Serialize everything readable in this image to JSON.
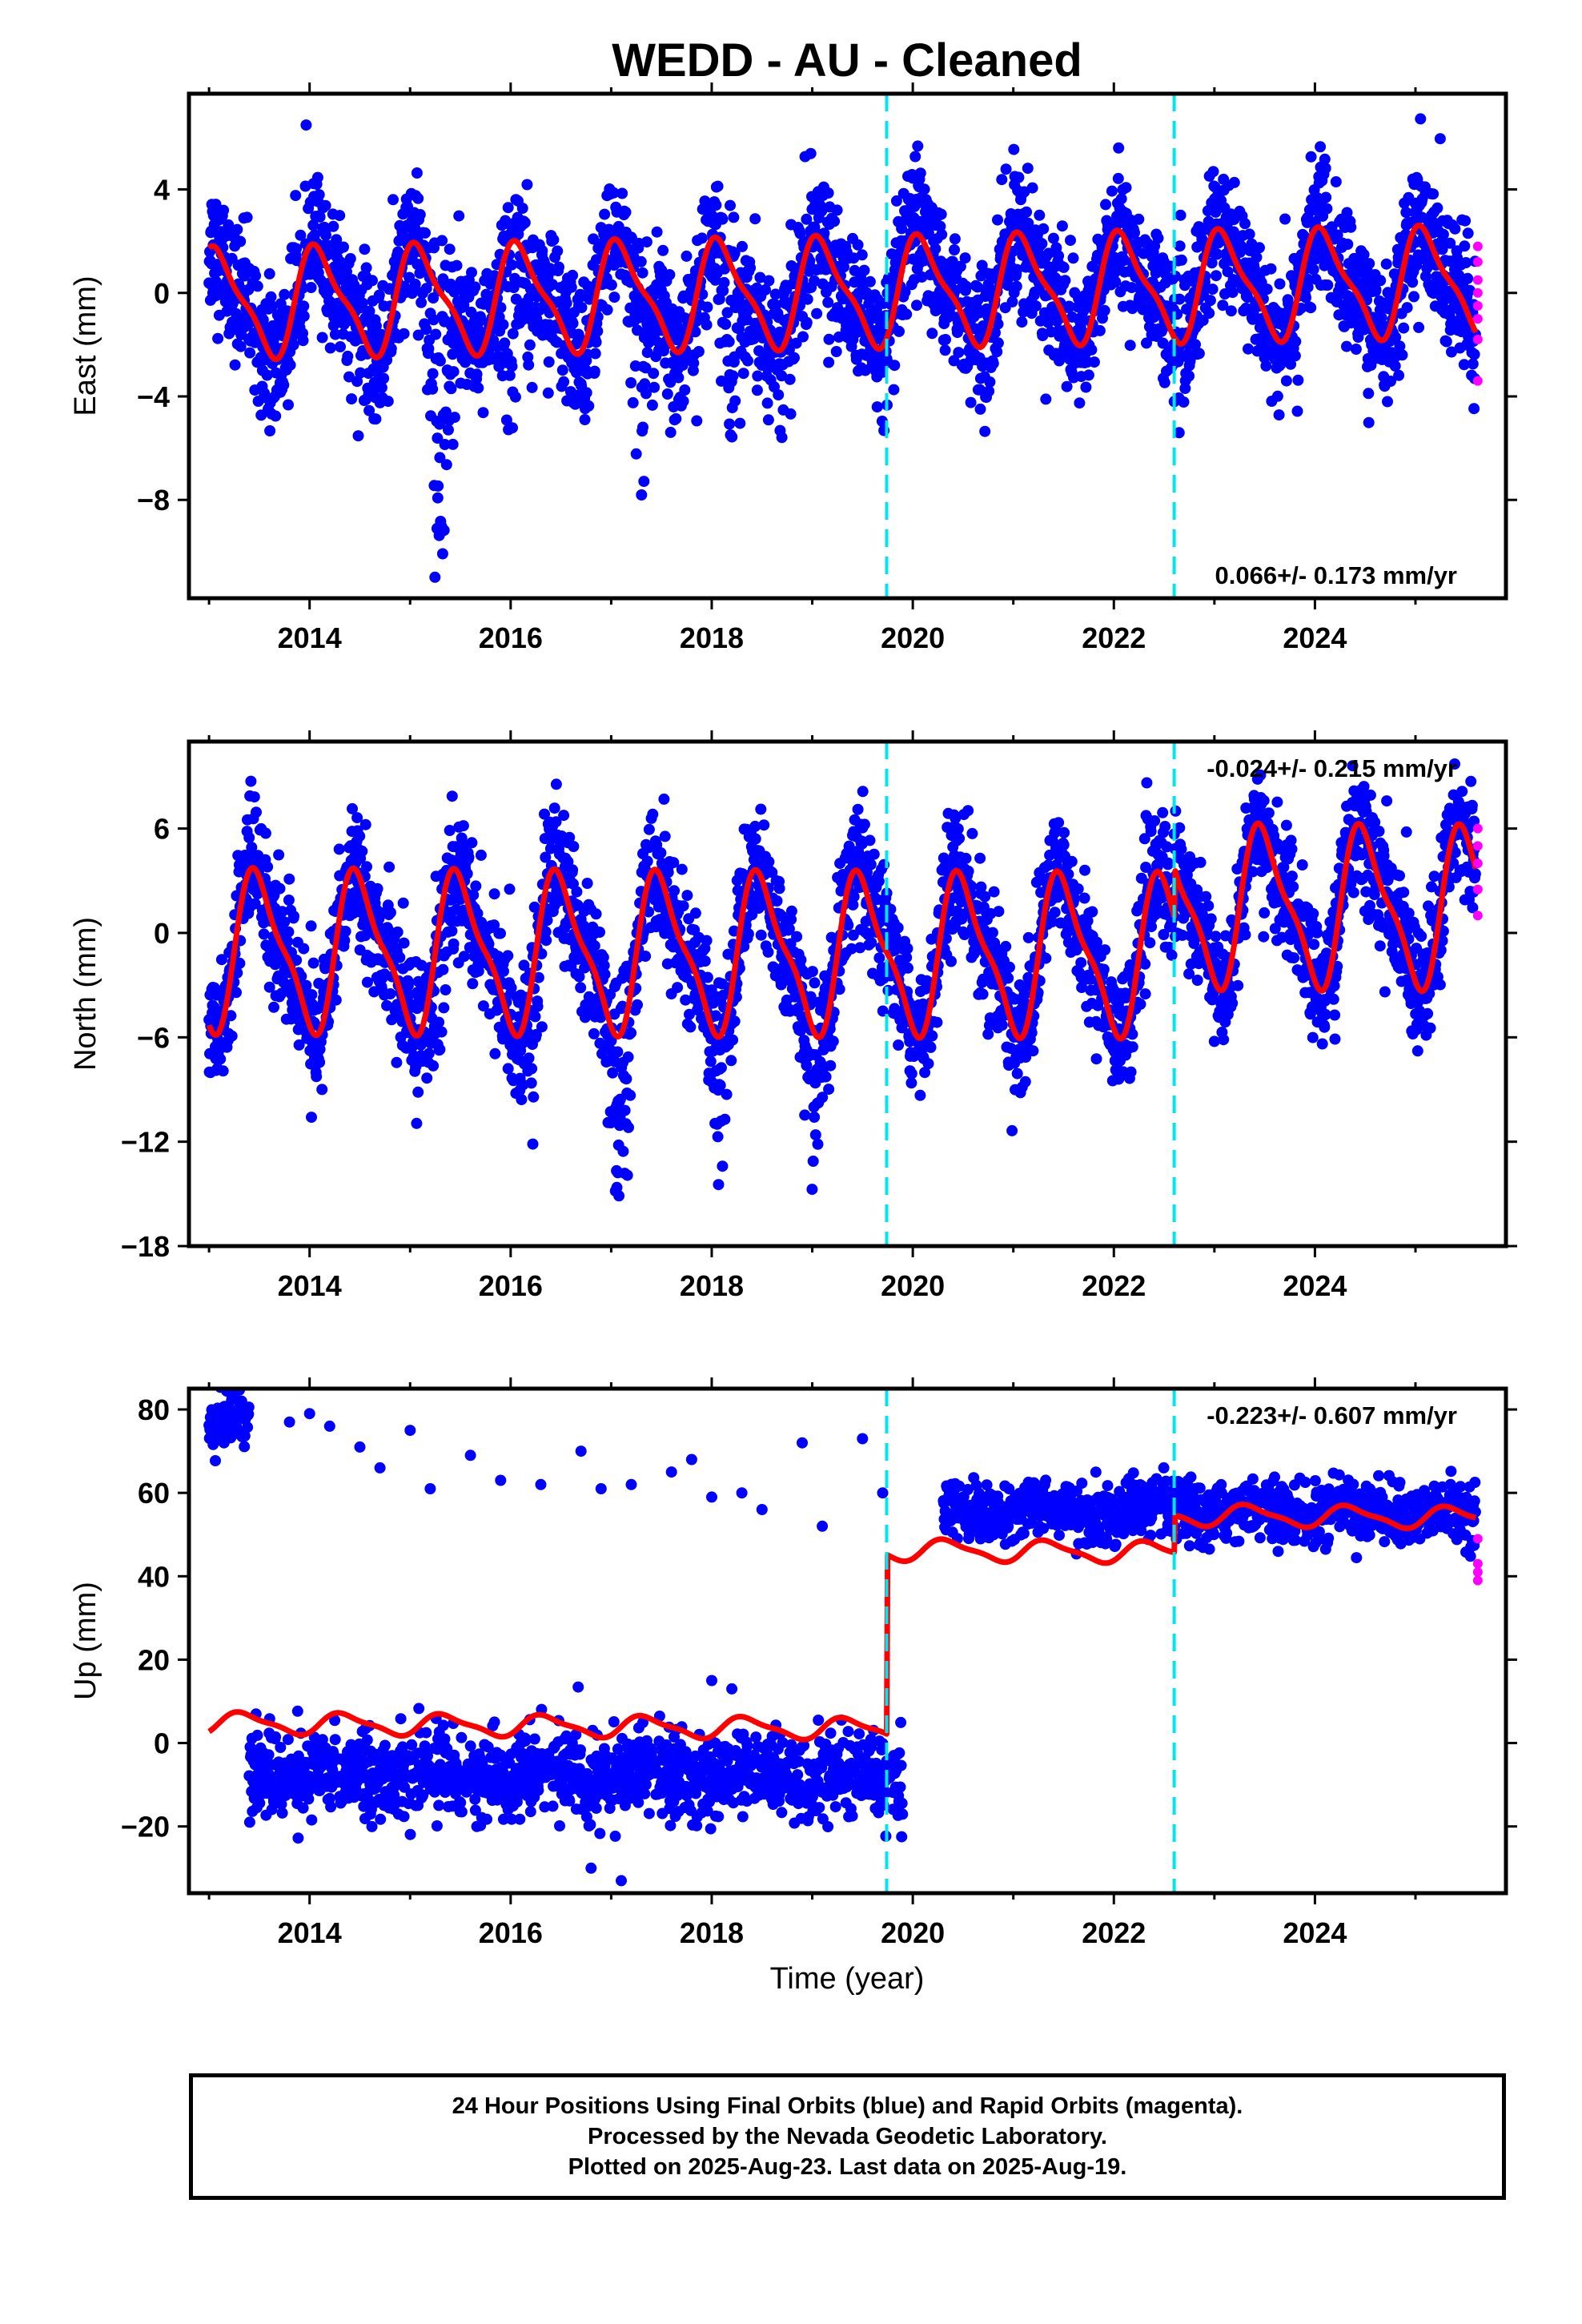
{
  "title": "WEDD  - AU - Cleaned",
  "xlabel": "Time (year)",
  "footer": {
    "line1": "24 Hour Positions Using Final Orbits (blue) and Rapid Orbits (magenta).",
    "line2": "Processed by the Nevada Geodetic Laboratory.",
    "line3": "Plotted on 2025-Aug-23. Last data on 2025-Aug-19."
  },
  "colors": {
    "final": "#0000ff",
    "rapid": "#ff00ff",
    "model": "#ff0000",
    "steps": "#00e5ee"
  },
  "chart_data": [
    {
      "type": "scatter",
      "panel": "east",
      "ylabel": "East (mm)",
      "xlim": [
        2012.8,
        2025.9
      ],
      "ylim": [
        -11.8,
        7.7
      ],
      "xticks": [
        2014,
        2016,
        2018,
        2020,
        2022,
        2024
      ],
      "yticks": [
        4,
        0,
        -4,
        -8
      ],
      "ytick_labels": [
        "4",
        "0",
        "−4",
        "−8"
      ],
      "rate_label": "0.066+/- 0.173 mm/yr",
      "step_epochs": [
        2019.74,
        2022.6
      ],
      "series": [
        {
          "name": "Final Orbits",
          "color": "#0000ff",
          "model": {
            "base": 0,
            "rate": 0.066,
            "amp": 2.3,
            "phase": 0.85,
            "segments": [
              0,
              0,
              0
            ]
          },
          "noise": 1.3,
          "excursions": [
            {
              "t": 2015.3,
              "depth": -8.5,
              "width": 0.12
            },
            {
              "t": 2016.0,
              "depth": -6.5,
              "width": 0.1
            },
            {
              "t": 2017.3,
              "depth": -5.0,
              "width": 0.1
            },
            {
              "t": 2018.2,
              "depth": -6.0,
              "width": 0.1
            }
          ],
          "t_start": 2013.0,
          "t_end": 2025.6
        },
        {
          "name": "Rapid Orbits",
          "color": "#ff00ff",
          "t": 2025.62,
          "values": [
            1.8,
            1.2,
            0.5,
            0.0,
            -0.5,
            -1.0,
            -1.8,
            -3.4
          ]
        }
      ]
    },
    {
      "type": "scatter",
      "panel": "north",
      "ylabel": "North (mm)",
      "xlim": [
        2012.8,
        2025.9
      ],
      "ylim": [
        -18.0,
        11.0
      ],
      "xticks": [
        2014,
        2016,
        2018,
        2020,
        2022,
        2024
      ],
      "yticks": [
        6,
        0,
        -6,
        -12,
        -18
      ],
      "ytick_labels": [
        "6",
        "0",
        "−6",
        "−12",
        "−18"
      ],
      "rate_label": "-0.024+/- 0.215 mm/yr",
      "step_epochs": [
        2019.74,
        2022.6
      ],
      "series": [
        {
          "name": "Final Orbits",
          "color": "#0000ff",
          "model": {
            "base": -1.2,
            "rate": -0.024,
            "amp": 5.0,
            "phase": 0.25,
            "segments": [
              0,
              0,
              2.8
            ]
          },
          "noise": 1.8,
          "excursions": [
            {
              "t": 2015.3,
              "depth": -6,
              "width": 0.1
            },
            {
              "t": 2016.2,
              "depth": -6,
              "width": 0.1
            },
            {
              "t": 2017.1,
              "depth": -8,
              "width": 0.1
            },
            {
              "t": 2018.1,
              "depth": -6,
              "width": 0.1
            },
            {
              "t": 2019.0,
              "depth": -5,
              "width": 0.1
            }
          ],
          "t_start": 2013.0,
          "t_end": 2025.6
        },
        {
          "name": "Rapid Orbits",
          "color": "#ff00ff",
          "t": 2025.62,
          "values": [
            6.0,
            5.0,
            4.0,
            2.5,
            1.0
          ]
        }
      ]
    },
    {
      "type": "scatter",
      "panel": "up",
      "ylabel": "Up (mm)",
      "xlim": [
        2012.8,
        2025.9
      ],
      "ylim": [
        -36.0,
        85.0
      ],
      "xticks": [
        2014,
        2016,
        2018,
        2020,
        2022,
        2024
      ],
      "yticks": [
        80,
        60,
        40,
        20,
        0,
        -20
      ],
      "ytick_labels": [
        "80",
        "60",
        "40",
        "20",
        "0",
        "−20"
      ],
      "rate_label": "-0.223+/- 0.607 mm/yr",
      "step_epochs": [
        2019.74,
        2022.6
      ],
      "series": [
        {
          "name": "Final Orbits",
          "color": "#0000ff",
          "model": {
            "base": 3.5,
            "rate": -0.223,
            "amp": 2.8,
            "phase": 0.1,
            "segments": [
              0,
              43,
              52
            ]
          },
          "clusters": [
            {
              "t0": 2013.0,
              "t1": 2013.4,
              "center": 76,
              "spread": 3
            },
            {
              "t0": 2013.4,
              "t1": 2019.9,
              "center": -8,
              "spread": 5
            },
            {
              "t0": 2020.3,
              "t1": 2025.6,
              "center": 56,
              "spread": 3.5
            }
          ],
          "outliers": [
            [
              2013.8,
              77
            ],
            [
              2014.0,
              79
            ],
            [
              2014.2,
              76
            ],
            [
              2014.5,
              71
            ],
            [
              2014.7,
              66
            ],
            [
              2015.0,
              75
            ],
            [
              2015.2,
              61
            ],
            [
              2015.6,
              69
            ],
            [
              2015.9,
              63
            ],
            [
              2016.3,
              62
            ],
            [
              2016.7,
              70
            ],
            [
              2016.9,
              61
            ],
            [
              2017.2,
              62
            ],
            [
              2017.6,
              65
            ],
            [
              2017.8,
              68
            ],
            [
              2018.0,
              59
            ],
            [
              2018.3,
              60
            ],
            [
              2018.5,
              56
            ],
            [
              2018.9,
              72
            ],
            [
              2019.1,
              52
            ],
            [
              2019.5,
              73
            ],
            [
              2019.7,
              60
            ],
            [
              2018.0,
              15
            ],
            [
              2018.2,
              13
            ],
            [
              2017.1,
              -33
            ],
            [
              2016.8,
              -30
            ]
          ],
          "t_start": 2013.0,
          "t_end": 2025.6
        },
        {
          "name": "Rapid Orbits",
          "color": "#ff00ff",
          "t": 2025.62,
          "values": [
            49,
            43,
            41,
            39
          ]
        }
      ]
    }
  ]
}
